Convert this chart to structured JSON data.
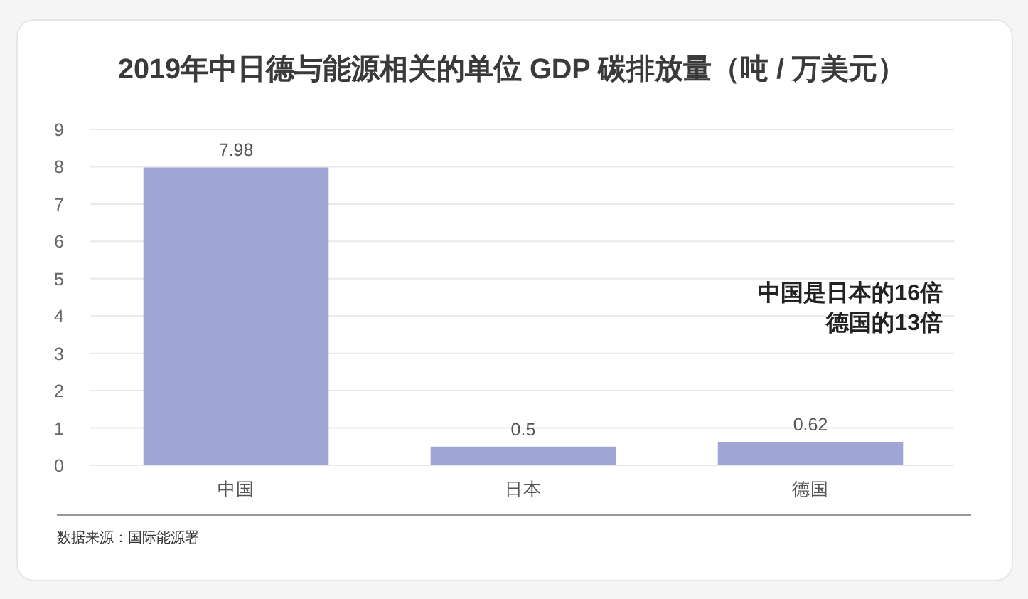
{
  "chart_data": {
    "type": "bar",
    "title": "2019年中日德与能源相关的单位 GDP 碳排放量（吨 / 万美元）",
    "categories": [
      "中国",
      "日本",
      "德国"
    ],
    "values": [
      7.98,
      0.5,
      0.62
    ],
    "color": "#9fa6d4",
    "ylim": [
      0,
      9
    ],
    "yticks": [
      0,
      1,
      2,
      3,
      4,
      5,
      6,
      7,
      8,
      9
    ],
    "grid": "y",
    "data_labels": true,
    "annotations": [
      "中国是日本的16倍德国的13倍",
      "数据来源：国际能源署"
    ]
  }
}
